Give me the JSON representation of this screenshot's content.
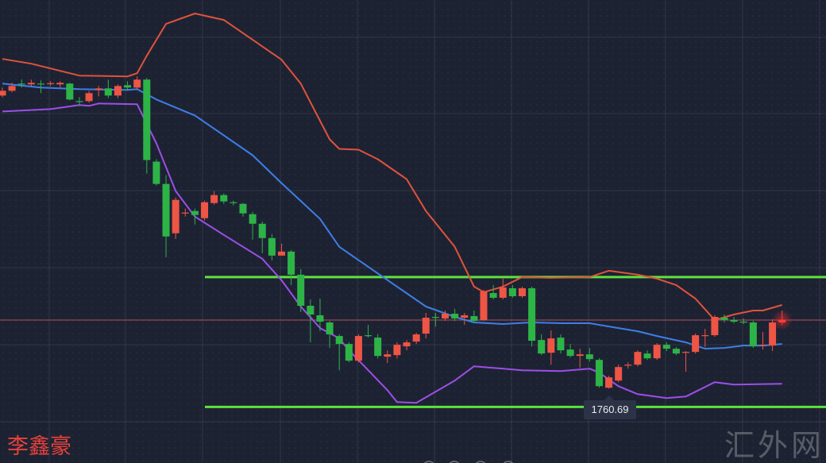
{
  "chart_data": {
    "type": "candlestick",
    "title": "",
    "xlabel": "",
    "ylabel": "",
    "ylim": [
      1742.0,
      1858.3
    ],
    "grid": true,
    "colors": {
      "up": "#ee5545",
      "down": "#2db447",
      "upper_band": "#e0533a",
      "middle_band": "#3d7fe6",
      "lower_band": "#9c4fe6",
      "support_lines": "#5de23c",
      "last_price_line": "#b0505a",
      "background": "#1d2233"
    },
    "candles": [
      [
        1834.3,
        1836.3,
        1833.9,
        1835.5
      ],
      [
        1835.5,
        1837.5,
        1835.1,
        1836.7
      ],
      [
        1837.3,
        1838.3,
        1836.3,
        1837.1
      ],
      [
        1837.1,
        1838.3,
        1836.7,
        1837.5
      ],
      [
        1837.3,
        1838.1,
        1834.9,
        1837.2
      ],
      [
        1837.2,
        1837.9,
        1836.7,
        1837.4
      ],
      [
        1837.1,
        1837.9,
        1836.3,
        1837.5
      ],
      [
        1837.3,
        1837.5,
        1833.1,
        1833.3
      ],
      [
        1832.9,
        1833.9,
        1831.7,
        1832.7
      ],
      [
        1832.9,
        1835.5,
        1832.5,
        1834.9
      ],
      [
        1835.7,
        1836.7,
        1834.1,
        1836.1
      ],
      [
        1836.1,
        1838.3,
        1833.7,
        1834.3
      ],
      [
        1834.3,
        1837.1,
        1833.7,
        1836.7
      ],
      [
        1836.9,
        1837.9,
        1835.5,
        1836.3
      ],
      [
        1836.3,
        1839.1,
        1835.9,
        1838.3
      ],
      [
        1838.3,
        1838.7,
        1814.7,
        1818.1
      ],
      [
        1817.7,
        1818.3,
        1811.7,
        1812.1
      ],
      [
        1812.1,
        1814.3,
        1793.7,
        1798.9
      ],
      [
        1799.7,
        1808.7,
        1798.3,
        1808.1
      ],
      [
        1804.7,
        1805.9,
        1803.9,
        1804.9
      ],
      [
        1805.3,
        1805.9,
        1801.9,
        1804.3
      ],
      [
        1803.5,
        1807.9,
        1802.9,
        1807.5
      ],
      [
        1807.3,
        1810.3,
        1806.9,
        1809.3
      ],
      [
        1809.3,
        1809.7,
        1807.1,
        1807.7
      ],
      [
        1807.5,
        1807.9,
        1806.7,
        1807.3
      ],
      [
        1807.1,
        1807.3,
        1803.9,
        1804.7
      ],
      [
        1804.5,
        1805.1,
        1798.1,
        1802.1
      ],
      [
        1802.1,
        1802.7,
        1794.7,
        1798.5
      ],
      [
        1798.5,
        1799.5,
        1792.9,
        1794.1
      ],
      [
        1794.1,
        1797.1,
        1794.1,
        1795.1
      ],
      [
        1795.1,
        1795.5,
        1786.7,
        1789.3
      ],
      [
        1789.3,
        1790.7,
        1779.9,
        1781.5
      ],
      [
        1781.5,
        1783.1,
        1772.3,
        1779.3
      ],
      [
        1779.1,
        1783.3,
        1775.1,
        1777.5
      ],
      [
        1777.3,
        1777.7,
        1770.9,
        1774.3
      ],
      [
        1773.9,
        1774.3,
        1765.3,
        1771.9
      ],
      [
        1771.9,
        1772.3,
        1767.3,
        1767.7
      ],
      [
        1767.7,
        1774.3,
        1767.3,
        1773.9
      ],
      [
        1774.1,
        1776.7,
        1773.5,
        1773.9
      ],
      [
        1773.5,
        1774.3,
        1768.3,
        1768.9
      ],
      [
        1768.7,
        1770.3,
        1767.1,
        1769.3
      ],
      [
        1769.1,
        1772.3,
        1768.3,
        1771.7
      ],
      [
        1771.3,
        1772.9,
        1770.3,
        1772.3
      ],
      [
        1772.5,
        1774.7,
        1771.9,
        1774.3
      ],
      [
        1774.5,
        1779.7,
        1773.3,
        1778.5
      ],
      [
        1778.7,
        1779.7,
        1776.3,
        1778.5
      ],
      [
        1778.3,
        1780.3,
        1777.7,
        1779.5
      ],
      [
        1779.5,
        1780.7,
        1777.7,
        1778.3
      ],
      [
        1778.5,
        1779.7,
        1776.7,
        1779.1
      ],
      [
        1778.9,
        1780.3,
        1777.3,
        1777.7
      ],
      [
        1777.9,
        1785.5,
        1777.7,
        1785.1
      ],
      [
        1784.7,
        1786.7,
        1783.1,
        1783.5
      ],
      [
        1783.5,
        1788.3,
        1783.1,
        1786.1
      ],
      [
        1785.9,
        1786.7,
        1783.5,
        1783.9
      ],
      [
        1783.9,
        1786.3,
        1783.5,
        1785.9
      ],
      [
        1785.9,
        1786.3,
        1771.3,
        1772.7
      ],
      [
        1772.9,
        1774.3,
        1769.1,
        1769.5
      ],
      [
        1769.7,
        1775.3,
        1766.7,
        1773.3
      ],
      [
        1773.5,
        1774.3,
        1769.5,
        1770.3
      ],
      [
        1770.5,
        1771.9,
        1768.5,
        1768.9
      ],
      [
        1768.9,
        1770.7,
        1765.9,
        1769.3
      ],
      [
        1769.3,
        1770.9,
        1767.5,
        1768.1
      ],
      [
        1767.9,
        1768.3,
        1760.9,
        1761.3
      ],
      [
        1760.9,
        1763.9,
        1760.69,
        1763.5
      ],
      [
        1762.7,
        1766.7,
        1762.3,
        1766.1
      ],
      [
        1766.5,
        1767.3,
        1765.7,
        1766.7
      ],
      [
        1766.7,
        1770.3,
        1766.3,
        1769.9
      ],
      [
        1769.5,
        1770.3,
        1767.9,
        1768.3
      ],
      [
        1768.3,
        1772.1,
        1767.9,
        1771.7
      ],
      [
        1771.7,
        1772.3,
        1770.1,
        1770.7
      ],
      [
        1770.7,
        1771.1,
        1769.1,
        1769.5
      ],
      [
        1769.7,
        1770.1,
        1764.9,
        1769.9
      ],
      [
        1769.9,
        1774.5,
        1769.5,
        1774.1
      ],
      [
        1773.9,
        1775.7,
        1771.1,
        1774.1
      ],
      [
        1774.1,
        1779.1,
        1773.7,
        1778.7
      ],
      [
        1778.5,
        1779.3,
        1777.3,
        1777.9
      ],
      [
        1777.9,
        1778.7,
        1777.1,
        1777.5
      ],
      [
        1777.5,
        1778.3,
        1776.9,
        1777.3
      ],
      [
        1777.3,
        1777.7,
        1770.9,
        1771.3
      ],
      [
        1771.5,
        1774.9,
        1770.5,
        1771.7
      ],
      [
        1771.5,
        1778.1,
        1770.1,
        1777.3
      ],
      [
        1777.3,
        1780.3,
        1776.7,
        1777.9
      ]
    ],
    "candle_fields": [
      "open",
      "high",
      "low",
      "close"
    ],
    "bands": {
      "upper": [
        [
          0,
          1843.5
        ],
        [
          3,
          1842.3
        ],
        [
          8,
          1839.3
        ],
        [
          13,
          1839.1
        ],
        [
          14,
          1839.9
        ],
        [
          15,
          1844.3
        ],
        [
          17,
          1852.3
        ],
        [
          20,
          1854.9
        ],
        [
          23,
          1853.3
        ],
        [
          26,
          1848.3
        ],
        [
          29,
          1843.3
        ],
        [
          31,
          1837.3
        ],
        [
          34,
          1823.3
        ],
        [
          35,
          1820.9
        ],
        [
          37,
          1820.7
        ],
        [
          39,
          1818.3
        ],
        [
          42,
          1813.3
        ],
        [
          44,
          1805.3
        ],
        [
          47,
          1796.3
        ],
        [
          49,
          1786.3
        ],
        [
          50,
          1784.9
        ],
        [
          52,
          1786.3
        ],
        [
          54,
          1788.7
        ],
        [
          57,
          1788.5
        ],
        [
          61,
          1788.7
        ],
        [
          63,
          1790.3
        ],
        [
          66,
          1789.3
        ],
        [
          68,
          1788.3
        ],
        [
          70,
          1786.7
        ],
        [
          72,
          1783.3
        ],
        [
          74,
          1777.9
        ],
        [
          76,
          1779.3
        ],
        [
          78,
          1780.3
        ],
        [
          79,
          1780.3
        ],
        [
          81,
          1781.7
        ]
      ],
      "middle": [
        [
          0,
          1837.3
        ],
        [
          4,
          1836.3
        ],
        [
          8,
          1835.9
        ],
        [
          13,
          1835.7
        ],
        [
          14,
          1835.9
        ],
        [
          16,
          1833.3
        ],
        [
          20,
          1829.3
        ],
        [
          23,
          1824.3
        ],
        [
          26,
          1819.3
        ],
        [
          29,
          1812.3
        ],
        [
          33,
          1803.3
        ],
        [
          35,
          1796.3
        ],
        [
          38,
          1791.3
        ],
        [
          41,
          1786.3
        ],
        [
          44,
          1781.3
        ],
        [
          47,
          1778.7
        ],
        [
          49,
          1777.3
        ],
        [
          52,
          1776.9
        ],
        [
          55,
          1777.3
        ],
        [
          58,
          1777.1
        ],
        [
          61,
          1777.1
        ],
        [
          63,
          1776.3
        ],
        [
          66,
          1775.1
        ],
        [
          68,
          1773.9
        ],
        [
          71,
          1772.3
        ],
        [
          73,
          1770.7
        ],
        [
          75,
          1770.9
        ],
        [
          77,
          1771.5
        ],
        [
          79,
          1771.5
        ],
        [
          81,
          1771.9
        ]
      ],
      "lower": [
        [
          0,
          1830.3
        ],
        [
          5,
          1830.9
        ],
        [
          8,
          1831.9
        ],
        [
          9,
          1831.7
        ],
        [
          10,
          1832.3
        ],
        [
          14,
          1832.1
        ],
        [
          16,
          1822.3
        ],
        [
          18,
          1810.3
        ],
        [
          20,
          1803.9
        ],
        [
          23,
          1799.3
        ],
        [
          27,
          1793.3
        ],
        [
          29,
          1787.9
        ],
        [
          31,
          1781.3
        ],
        [
          33,
          1775.9
        ],
        [
          35,
          1773.3
        ],
        [
          36,
          1770.3
        ],
        [
          38,
          1765.3
        ],
        [
          40,
          1760.3
        ],
        [
          41,
          1757.3
        ],
        [
          43,
          1757.1
        ],
        [
          45,
          1759.9
        ],
        [
          47,
          1762.7
        ],
        [
          49,
          1766.3
        ],
        [
          51,
          1765.9
        ],
        [
          54,
          1765.3
        ],
        [
          58,
          1765.1
        ],
        [
          61,
          1765.7
        ],
        [
          62,
          1764.7
        ],
        [
          64,
          1761.3
        ],
        [
          66,
          1759.3
        ],
        [
          69,
          1758.3
        ],
        [
          71,
          1758.7
        ],
        [
          72,
          1759.9
        ],
        [
          74,
          1762.3
        ],
        [
          76,
          1761.7
        ],
        [
          81,
          1761.9
        ]
      ]
    },
    "horizontal_lines": {
      "resistance": 1788.7,
      "support": 1756.1,
      "last_price": 1777.9
    },
    "annotations": {
      "low_price_label": "1760.69",
      "low_price_bar": 63
    }
  },
  "watermarks": {
    "author": "李鑫豪",
    "site": "汇外网"
  }
}
